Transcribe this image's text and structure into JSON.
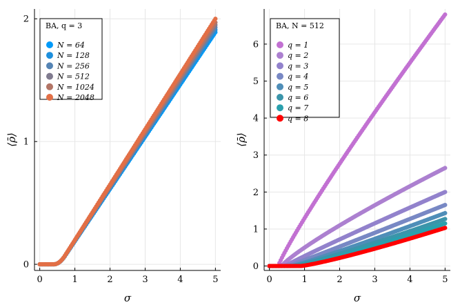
{
  "chart_data": [
    {
      "type": "scatter",
      "panel": "left",
      "xlabel": "σ",
      "ylabel": "⟨ρ̄⟩",
      "xlim": [
        -0.15,
        5.15
      ],
      "ylim": [
        -0.05,
        2.08
      ],
      "xticks": [
        0,
        1,
        2,
        3,
        4,
        5
      ],
      "yticks": [
        0,
        1,
        2
      ],
      "grid": true,
      "legend_position": "top-left",
      "legend_title": "BA, q = 3",
      "model": "threshold",
      "series": [
        {
          "name": "N = 64",
          "color": "#009af9",
          "slope": 0.387,
          "threshold": 0.4,
          "curvature": 0.16,
          "end": 1.89
        },
        {
          "name": "N = 128",
          "color": "#1e90dd",
          "slope": 0.39,
          "threshold": 0.4,
          "curvature": 0.16,
          "end": 1.91
        },
        {
          "name": "N = 256",
          "color": "#5584b4",
          "slope": 0.393,
          "threshold": 0.4,
          "curvature": 0.16,
          "end": 1.93
        },
        {
          "name": "N = 512",
          "color": "#807b8f",
          "slope": 0.395,
          "threshold": 0.4,
          "curvature": 0.16,
          "end": 1.95
        },
        {
          "name": "N = 1024",
          "color": "#b27566",
          "slope": 0.398,
          "threshold": 0.4,
          "curvature": 0.16,
          "end": 1.97
        },
        {
          "name": "N = 2048",
          "color": "#e26f46",
          "slope": 0.403,
          "threshold": 0.4,
          "curvature": 0.16,
          "end": 2.0
        }
      ]
    },
    {
      "type": "scatter",
      "panel": "right",
      "xlabel": "σ",
      "ylabel": "⟨ρ̄⟩",
      "xlim": [
        -0.15,
        5.15
      ],
      "ylim": [
        -0.12,
        6.95
      ],
      "xticks": [
        0,
        1,
        2,
        3,
        4,
        5
      ],
      "yticks": [
        0,
        1,
        2,
        3,
        4,
        5,
        6
      ],
      "grid": true,
      "legend_position": "top-left",
      "legend_title": "BA, N = 512",
      "model": "power",
      "series": [
        {
          "name": "q = 1",
          "color": "#c271d2",
          "threshold": 0.25,
          "end": 6.8,
          "exponent": 0.9
        },
        {
          "name": "q = 2",
          "color": "#ac80d0",
          "threshold": 0.35,
          "end": 2.65,
          "exponent": 0.85
        },
        {
          "name": "q = 3",
          "color": "#9282cc",
          "threshold": 0.45,
          "end": 2.0,
          "exponent": 0.95
        },
        {
          "name": "q = 4",
          "color": "#7888c4",
          "threshold": 0.55,
          "end": 1.65,
          "exponent": 1.02
        },
        {
          "name": "q = 5",
          "color": "#4f8eb8",
          "threshold": 0.65,
          "end": 1.43,
          "exponent": 1.08
        },
        {
          "name": "q = 6",
          "color": "#3b95aa",
          "threshold": 0.72,
          "end": 1.27,
          "exponent": 1.12
        },
        {
          "name": "q = 7",
          "color": "#2aa0ad",
          "threshold": 0.8,
          "end": 1.15,
          "exponent": 1.15
        },
        {
          "name": "q = 8",
          "color": "#ff0000",
          "threshold": 0.9,
          "end": 1.03,
          "exponent": 1.18
        }
      ]
    }
  ]
}
